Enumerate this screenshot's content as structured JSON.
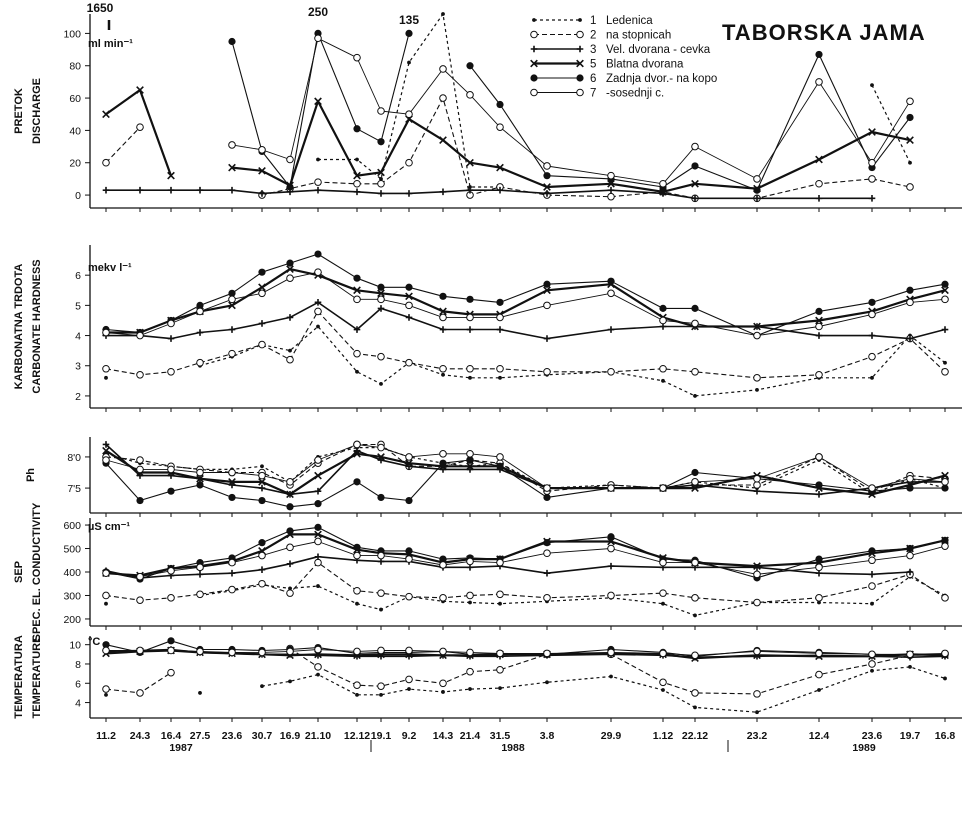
{
  "chart_data": {
    "type": "line",
    "title": "TABORSKA JAMA",
    "x": [
      "11.2",
      "24.3",
      "16.4",
      "27.5",
      "23.6",
      "30.7",
      "16.9",
      "21.10",
      "12.12",
      "19.1",
      "9.2",
      "14.3",
      "21.4",
      "31.5",
      "3.8",
      "29.9",
      "1.12",
      "22.12",
      "23.2",
      "12.4",
      "23.6",
      "19.7",
      "16.8"
    ],
    "years": [
      "1987",
      "1988",
      "1989"
    ],
    "legend": [
      {
        "num": "1",
        "name": "Ledenica"
      },
      {
        "num": "2",
        "name": "na stopnicah"
      },
      {
        "num": "3",
        "name": "Vel. dvorana - cevka"
      },
      {
        "num": "5",
        "name": "Blatna dvorana"
      },
      {
        "num": "6",
        "name": "Zadnja dvor.- na kopo"
      },
      {
        "num": "7",
        "name": "-sosednji c."
      }
    ],
    "styles": {
      "1": {
        "color": "#111111",
        "dash": "3,3",
        "marker": "dot",
        "width": 1.2
      },
      "2": {
        "color": "#111111",
        "dash": "5,3",
        "marker": "circle-open",
        "width": 1.1
      },
      "3": {
        "color": "#111111",
        "dash": "",
        "marker": "plus",
        "width": 1.6
      },
      "5": {
        "color": "#111111",
        "dash": "",
        "marker": "cross",
        "width": 2.2
      },
      "6": {
        "color": "#111111",
        "dash": "",
        "marker": "circle-filled",
        "width": 1.1
      },
      "7": {
        "color": "#111111",
        "dash": "",
        "marker": "circle-open",
        "width": 0.9
      }
    },
    "panels": [
      {
        "id": "discharge",
        "ylabel_lines": [
          "PRETOK",
          "DISCHARGE"
        ],
        "unit": "ml min⁻¹",
        "ylim": [
          -8,
          112
        ],
        "ticks": [
          0,
          20,
          40,
          60,
          80,
          100
        ],
        "annotations": [
          {
            "text": "1650",
            "xi": 0,
            "y": 112
          },
          {
            "text": "250",
            "xi": 7,
            "y": 107
          },
          {
            "text": "135",
            "xi": 10,
            "y": 102
          }
        ],
        "series": [
          {
            "id": "1",
            "values": [
              null,
              null,
              null,
              null,
              null,
              null,
              null,
              22,
              22,
              10,
              82,
              112,
              5,
              5,
              null,
              null,
              null,
              null,
              null,
              null,
              68,
              20,
              null
            ]
          },
          {
            "id": "2",
            "values": [
              20,
              42,
              null,
              null,
              null,
              0,
              4,
              8,
              7,
              7,
              20,
              60,
              0,
              5,
              0,
              -1,
              2,
              -2,
              -2,
              7,
              10,
              5,
              null
            ]
          },
          {
            "id": "3",
            "values": [
              3,
              3,
              3,
              3,
              3,
              1,
              2,
              3,
              2,
              1,
              1,
              2,
              3,
              3,
              1,
              3,
              1,
              -2,
              -2,
              -2,
              -2,
              null,
              null
            ]
          },
          {
            "id": "5",
            "values": [
              50,
              65,
              12,
              null,
              17,
              15,
              6,
              58,
              12,
              14,
              47,
              34,
              20,
              17,
              5,
              7,
              2,
              7,
              4,
              22,
              39,
              34,
              null
            ]
          },
          {
            "id": "6",
            "values": [
              null,
              null,
              null,
              null,
              95,
              27,
              5,
              100,
              41,
              33,
              100,
              null,
              80,
              56,
              12,
              10,
              5,
              18,
              3,
              87,
              17,
              48,
              null
            ]
          },
          {
            "id": "7",
            "values": [
              null,
              null,
              null,
              null,
              31,
              28,
              22,
              97,
              85,
              52,
              50,
              78,
              62,
              42,
              18,
              12,
              7,
              30,
              10,
              70,
              20,
              58,
              null
            ]
          }
        ]
      },
      {
        "id": "hardness",
        "ylabel_lines": [
          "KARBONATNA TRDOTA",
          "CARBONATE HARDNESS"
        ],
        "unit": "mekv l⁻¹",
        "ylim": [
          1.6,
          7
        ],
        "ticks": [
          2,
          3,
          4,
          5,
          6
        ],
        "series": [
          {
            "id": "1",
            "values": [
              2.6,
              null,
              null,
              3.0,
              3.3,
              3.7,
              3.5,
              4.3,
              2.8,
              2.4,
              3.1,
              2.7,
              2.6,
              2.6,
              2.7,
              2.8,
              2.5,
              2.0,
              2.2,
              2.6,
              2.6,
              4.0,
              3.1
            ]
          },
          {
            "id": "2",
            "values": [
              2.9,
              2.7,
              2.8,
              3.1,
              3.4,
              3.7,
              3.2,
              4.8,
              3.4,
              3.3,
              3.1,
              2.9,
              2.9,
              2.9,
              2.8,
              2.8,
              2.9,
              2.8,
              2.6,
              2.7,
              3.3,
              3.9,
              2.8
            ]
          },
          {
            "id": "3",
            "values": [
              4.0,
              4.0,
              3.9,
              4.1,
              4.2,
              4.4,
              4.6,
              5.1,
              4.2,
              4.9,
              4.6,
              4.2,
              4.2,
              4.2,
              3.9,
              4.2,
              4.3,
              4.3,
              4.3,
              4.0,
              4.0,
              3.9,
              4.2
            ]
          },
          {
            "id": "5",
            "values": [
              4.1,
              4.1,
              4.5,
              4.8,
              5.0,
              5.6,
              6.2,
              6.0,
              5.5,
              5.4,
              5.3,
              4.8,
              4.7,
              4.7,
              5.5,
              5.7,
              4.6,
              4.3,
              4.3,
              4.5,
              4.8,
              5.2,
              5.5
            ]
          },
          {
            "id": "6",
            "values": [
              4.2,
              4.1,
              4.5,
              5.0,
              5.4,
              6.1,
              6.4,
              6.7,
              5.9,
              5.6,
              5.6,
              5.3,
              5.2,
              5.1,
              5.7,
              5.8,
              4.9,
              4.9,
              4.0,
              4.8,
              5.1,
              5.5,
              5.7
            ]
          },
          {
            "id": "7",
            "values": [
              4.1,
              4.0,
              4.4,
              4.8,
              5.2,
              5.4,
              5.9,
              6.1,
              5.2,
              5.2,
              5.0,
              4.6,
              4.6,
              4.6,
              5.0,
              5.4,
              4.5,
              4.4,
              4.0,
              4.3,
              4.7,
              5.1,
              5.2
            ]
          }
        ]
      },
      {
        "id": "ph",
        "ylabel_lines": [
          "Ph"
        ],
        "unit": "",
        "ylim": [
          7.1,
          8.32
        ],
        "ticks": [
          7.5,
          8.0
        ],
        "tick_labels": [
          "7'5",
          "8'0"
        ],
        "series": [
          {
            "id": "1",
            "values": [
              8.05,
              7.9,
              7.85,
              7.8,
              7.8,
              7.85,
              7.6,
              8.0,
              8.15,
              8.15,
              8.0,
              7.9,
              7.85,
              7.9,
              7.5,
              7.55,
              7.5,
              7.6,
              7.5,
              7.95,
              7.4,
              7.65,
              7.5
            ]
          },
          {
            "id": "2",
            "values": [
              8.0,
              7.95,
              7.85,
              7.8,
              7.75,
              7.75,
              7.55,
              7.9,
              8.2,
              8.2,
              7.85,
              7.85,
              7.95,
              7.9,
              7.45,
              7.55,
              7.5,
              7.55,
              7.55,
              8.0,
              7.45,
              7.7,
              7.65
            ]
          },
          {
            "id": "3",
            "values": [
              8.2,
              7.7,
              7.7,
              7.65,
              7.55,
              7.5,
              7.4,
              7.45,
              8.1,
              7.95,
              7.85,
              7.8,
              7.8,
              7.8,
              7.5,
              7.5,
              7.5,
              7.55,
              7.45,
              7.4,
              7.5,
              7.6,
              7.6
            ]
          },
          {
            "id": "5",
            "values": [
              8.1,
              7.75,
              7.75,
              7.65,
              7.6,
              7.6,
              7.4,
              7.7,
              8.05,
              8.0,
              7.9,
              7.85,
              7.85,
              7.85,
              7.5,
              7.5,
              7.5,
              7.5,
              7.7,
              7.5,
              7.4,
              7.55,
              7.7
            ]
          },
          {
            "id": "6",
            "values": [
              7.9,
              7.3,
              7.45,
              7.55,
              7.35,
              7.3,
              7.2,
              7.25,
              7.6,
              7.35,
              7.3,
              7.9,
              7.95,
              7.85,
              7.35,
              7.5,
              7.5,
              7.75,
              7.65,
              7.55,
              7.45,
              7.5,
              7.5
            ]
          },
          {
            "id": "7",
            "values": [
              7.95,
              7.8,
              7.8,
              7.75,
              7.75,
              7.7,
              7.6,
              7.95,
              8.2,
              8.15,
              8.0,
              8.05,
              8.05,
              8.0,
              7.5,
              7.5,
              7.5,
              7.6,
              7.65,
              8.0,
              7.5,
              7.65,
              7.6
            ]
          }
        ]
      },
      {
        "id": "conductivity",
        "ylabel_lines": [
          "SEP",
          "SPEC. EL. CONDUCTIVITY"
        ],
        "unit": "µS cm⁻¹",
        "ylim": [
          170,
          630
        ],
        "ticks": [
          200,
          300,
          400,
          500,
          600
        ],
        "series": [
          {
            "id": "1",
            "values": [
              265,
              null,
              null,
              300,
              320,
              345,
              330,
              340,
              265,
              240,
              295,
              275,
              270,
              265,
              275,
              290,
              265,
              215,
              270,
              270,
              265,
              380,
              300
            ]
          },
          {
            "id": "2",
            "values": [
              300,
              280,
              290,
              305,
              325,
              350,
              310,
              440,
              320,
              310,
              295,
              290,
              300,
              305,
              290,
              300,
              310,
              290,
              270,
              290,
              340,
              390,
              290
            ]
          },
          {
            "id": "3",
            "values": [
              405,
              375,
              385,
              390,
              395,
              410,
              435,
              465,
              450,
              445,
              445,
              420,
              420,
              425,
              395,
              425,
              420,
              420,
              420,
              395,
              390,
              400,
              null
            ]
          },
          {
            "id": "5",
            "values": [
              395,
              385,
              415,
              425,
              445,
              490,
              560,
              560,
              495,
              480,
              475,
              440,
              455,
              455,
              530,
              530,
              460,
              440,
              425,
              440,
              480,
              500,
              535
            ]
          },
          {
            "id": "6",
            "values": [
              400,
              370,
              415,
              440,
              460,
              525,
              575,
              590,
              505,
              490,
              490,
              455,
              460,
              455,
              525,
              550,
              455,
              450,
              375,
              455,
              490,
              500,
              535
            ]
          },
          {
            "id": "7",
            "values": [
              395,
              380,
              405,
              420,
              440,
              470,
              505,
              530,
              470,
              470,
              455,
              430,
              445,
              440,
              480,
              500,
              440,
              440,
              390,
              420,
              450,
              470,
              510
            ]
          }
        ]
      },
      {
        "id": "temperature",
        "ylabel_lines": [
          "TEMPERATURA",
          "TEMPERATURE"
        ],
        "unit": "°C",
        "ylim": [
          2.4,
          10.9
        ],
        "ticks": [
          4,
          6,
          8,
          10
        ],
        "series": [
          {
            "id": "1",
            "values": [
              4.8,
              null,
              null,
              5.0,
              null,
              5.7,
              6.2,
              6.9,
              4.8,
              4.8,
              5.4,
              5.1,
              5.4,
              5.5,
              6.1,
              6.7,
              5.3,
              3.5,
              3.0,
              5.3,
              7.3,
              7.7,
              6.5
            ]
          },
          {
            "id": "2",
            "values": [
              5.4,
              5.0,
              7.1,
              null,
              null,
              null,
              9.6,
              7.7,
              5.8,
              5.7,
              6.4,
              6.0,
              7.2,
              7.4,
              9.0,
              9.0,
              6.1,
              5.0,
              4.9,
              6.9,
              8.0,
              8.9,
              9.0
            ]
          },
          {
            "id": "3",
            "values": [
              9.3,
              9.4,
              9.5,
              9.2,
              9.1,
              9.0,
              9.0,
              8.9,
              8.8,
              8.8,
              8.8,
              8.9,
              8.8,
              8.8,
              8.9,
              9.0,
              8.9,
              8.7,
              8.8,
              8.9,
              8.8,
              8.7,
              8.8
            ]
          },
          {
            "id": "5",
            "values": [
              9.1,
              9.3,
              9.4,
              9.2,
              9.1,
              9.0,
              8.9,
              9.0,
              8.9,
              9.0,
              9.0,
              8.9,
              8.9,
              9.0,
              9.0,
              9.1,
              9.0,
              8.6,
              8.9,
              8.8,
              8.8,
              9.0,
              8.9
            ]
          },
          {
            "id": "6",
            "values": [
              10.0,
              9.2,
              10.4,
              9.5,
              9.5,
              9.4,
              9.5,
              9.7,
              9.1,
              9.2,
              9.2,
              9.3,
              9.0,
              9.1,
              9.0,
              9.5,
              9.2,
              8.8,
              9.4,
              9.2,
              9.0,
              8.9,
              9.0
            ]
          },
          {
            "id": "7",
            "values": [
              9.4,
              9.4,
              9.4,
              9.3,
              9.2,
              9.2,
              9.3,
              9.5,
              9.3,
              9.4,
              9.4,
              9.3,
              9.2,
              9.1,
              9.1,
              9.2,
              9.1,
              8.9,
              9.3,
              9.1,
              9.0,
              9.0,
              9.1
            ]
          }
        ]
      }
    ]
  }
}
